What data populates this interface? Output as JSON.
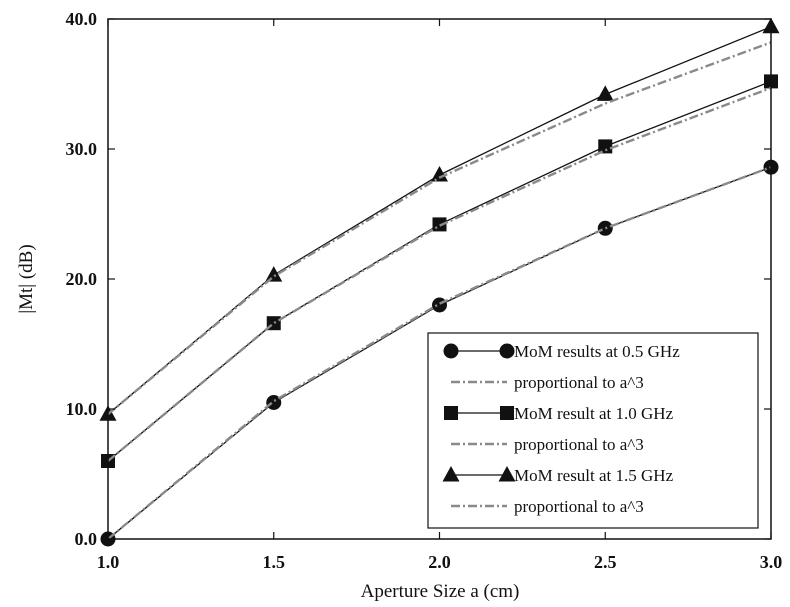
{
  "chart_data": {
    "type": "line",
    "xlabel": "Aperture Size a (cm)",
    "ylabel": "|Mt| (dB)",
    "xlim": [
      1.0,
      3.0
    ],
    "ylim": [
      0.0,
      40.0
    ],
    "x_ticks": [
      "1.0",
      "1.5",
      "2.0",
      "2.5",
      "3.0"
    ],
    "y_ticks": [
      "0.0",
      "10.0",
      "20.0",
      "30.0",
      "40.0"
    ],
    "grid": false,
    "legend_position": "bottom-right",
    "x": [
      1.0,
      1.5,
      2.0,
      2.5,
      3.0
    ],
    "series": [
      {
        "name": "MoM results at 0.5 GHz",
        "style": "solid",
        "marker": "circle",
        "values": [
          0.0,
          10.5,
          18.0,
          23.9,
          28.6
        ]
      },
      {
        "name": "proportional to a^3",
        "style": "dashed",
        "marker": "none",
        "values": [
          0.0,
          10.6,
          18.1,
          23.9,
          28.6
        ]
      },
      {
        "name": "MoM result at 1.0 GHz",
        "style": "solid",
        "marker": "square",
        "values": [
          6.0,
          16.6,
          24.2,
          30.2,
          35.2
        ]
      },
      {
        "name": "proportional to a^3",
        "style": "dashed",
        "marker": "none",
        "values": [
          6.0,
          16.6,
          24.1,
          29.9,
          34.7
        ]
      },
      {
        "name": "MoM result at 1.5 GHz",
        "style": "solid",
        "marker": "triangle",
        "values": [
          9.6,
          20.3,
          28.0,
          34.2,
          39.4
        ]
      },
      {
        "name": "proportional to a^3",
        "style": "dashed",
        "marker": "none",
        "values": [
          9.6,
          20.2,
          27.8,
          33.5,
          38.2
        ]
      }
    ]
  }
}
